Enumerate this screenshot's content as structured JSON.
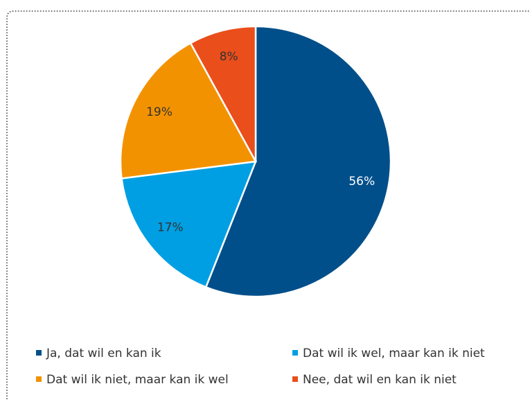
{
  "chart_data": {
    "type": "pie",
    "categories": [
      "Ja, dat wil en kan ik",
      "Dat wil ik wel, maar kan ik niet",
      "Dat wil ik niet, maar kan ik wel",
      "Nee, dat wil en kan ik niet"
    ],
    "values": [
      56,
      17,
      19,
      8
    ],
    "value_labels": [
      "56%",
      "17%",
      "19%",
      "8%"
    ],
    "colors": [
      "#004f8a",
      "#009fe3",
      "#f39200",
      "#e94e1b"
    ],
    "legend": "bottom"
  }
}
